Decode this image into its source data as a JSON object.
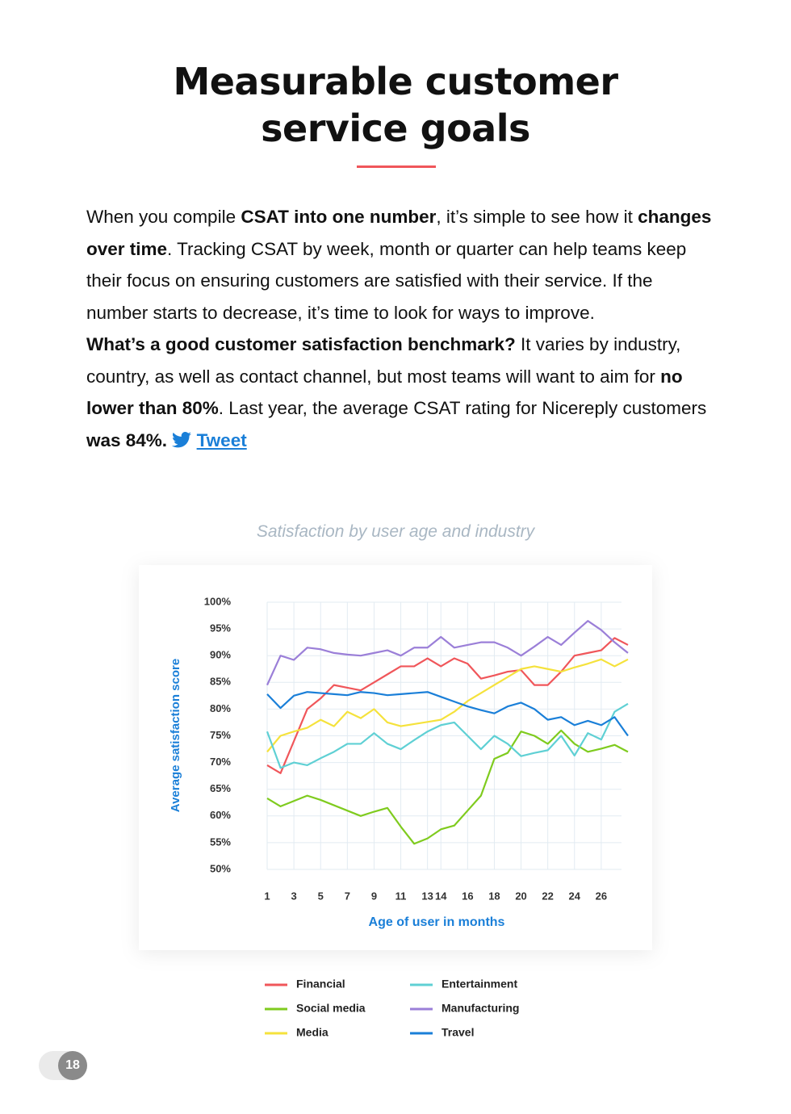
{
  "header": {
    "title_lines": [
      "Measurable customer",
      "service goals"
    ]
  },
  "body": {
    "paragraphs": [
      {
        "runs": [
          {
            "text": "When you compile ",
            "bold": false
          },
          {
            "text": "CSAT into one number",
            "bold": true
          },
          {
            "text": ", it’s simple to see how it ",
            "bold": false
          },
          {
            "text": "changes over time",
            "bold": true
          },
          {
            "text": ". Tracking CSAT by week, month or quarter can help teams keep their focus on ensuring customers are satisfied with their service. If the number starts to decrease, it’s time to look for ways to improve.",
            "bold": false
          }
        ]
      },
      {
        "runs": [
          {
            "text": "What’s a good customer satisfaction benchmark?",
            "bold": true
          },
          {
            "text": " It varies by industry, country, as well as contact channel, but most teams will want to aim for ",
            "bold": false
          },
          {
            "text": "no lower than 80%",
            "bold": true
          },
          {
            "text": ". Last year, the average CSAT rating for Nicereply customers ",
            "bold": false
          },
          {
            "text": "was 84%.",
            "bold": true
          }
        ]
      }
    ],
    "link": "Tweet"
  },
  "caption": "Satisfaction by user age and industry",
  "chart_data": {
    "type": "line",
    "x_label": "Age of user in months",
    "y_label": "Average satisfaction score",
    "x": [
      1,
      2,
      3,
      4,
      5,
      6,
      7,
      8,
      9,
      10,
      11,
      12,
      13,
      14,
      15,
      16,
      17,
      18,
      19,
      20,
      21,
      22,
      23,
      24,
      25,
      26,
      27,
      28
    ],
    "xlim": [
      1,
      28
    ],
    "xticks": [
      1,
      3,
      5,
      7,
      9,
      11,
      13,
      14,
      16,
      18,
      20,
      22,
      24,
      26
    ],
    "ylim": [
      50,
      100
    ],
    "yticks": [
      {
        "value": 50,
        "label": "50%"
      },
      {
        "value": 55,
        "label": "55%"
      },
      {
        "value": 60,
        "label": "60%"
      },
      {
        "value": 65,
        "label": "65%"
      },
      {
        "value": 70,
        "label": "70%"
      },
      {
        "value": 75,
        "label": "75%"
      },
      {
        "value": 80,
        "label": "80%"
      },
      {
        "value": 85,
        "label": "85%"
      },
      {
        "value": 90,
        "label": "90%"
      },
      {
        "value": 95,
        "label": "95%"
      },
      {
        "value": 100,
        "label": "100%"
      }
    ],
    "grid": true,
    "series": [
      {
        "name": "Financial",
        "color": "#f0565a",
        "values": [
          69.5,
          68,
          74,
          80,
          82,
          84.5,
          84,
          83.5,
          85,
          86.5,
          88,
          88,
          89.5,
          88,
          89.5,
          88.5,
          85.7,
          86.3,
          87,
          87.3,
          84.5,
          84.5,
          87,
          90,
          90.5,
          91,
          93.3,
          92
        ]
      },
      {
        "name": "Social media",
        "color": "#7fcb1e",
        "values": [
          63.3,
          61.8,
          62.8,
          63.8,
          63,
          62,
          61,
          60,
          60.8,
          61.5,
          58,
          54.8,
          55.8,
          57.5,
          58.2,
          61,
          63.8,
          70.7,
          71.8,
          75.8,
          75,
          73.5,
          76,
          73.5,
          72,
          72.6,
          73.3,
          72
        ]
      },
      {
        "name": "Media",
        "color": "#f5e23c",
        "values": [
          72,
          75,
          75.8,
          76.5,
          78,
          76.8,
          79.5,
          78.3,
          80,
          77.5,
          76.8,
          77.2,
          77.6,
          78,
          79.5,
          81.5,
          83,
          84.5,
          86,
          87.5,
          88,
          87.5,
          87,
          87.8,
          88.5,
          89.3,
          88,
          89.3
        ]
      },
      {
        "name": "Entertainment",
        "color": "#5fd0d4",
        "values": [
          75.8,
          69,
          70,
          69.5,
          70.8,
          72,
          73.5,
          73.5,
          75.5,
          73.5,
          72.5,
          74.2,
          75.8,
          77,
          77.5,
          75,
          72.5,
          75,
          73.5,
          71.2,
          71.8,
          72.3,
          75,
          71.3,
          75.5,
          74.3,
          79.5,
          81
        ]
      },
      {
        "name": "Manufacturing",
        "color": "#9b7fd8",
        "values": [
          84.5,
          90,
          89.2,
          91.5,
          91.2,
          90.5,
          90.2,
          90,
          90.5,
          91,
          90,
          91.5,
          91.5,
          93.5,
          91.5,
          92,
          92.5,
          92.5,
          91.5,
          90,
          91.7,
          93.5,
          92,
          94.3,
          96.5,
          94.8,
          92.5,
          90.5
        ]
      },
      {
        "name": "Travel",
        "color": "#1a7fd8",
        "values": [
          82.8,
          80.2,
          82.5,
          83.2,
          83,
          82.8,
          82.6,
          83.2,
          83,
          82.6,
          82.8,
          83,
          83.2,
          82.3,
          81.4,
          80.5,
          79.8,
          79.2,
          80.5,
          81.2,
          80,
          78,
          78.5,
          77,
          77.8,
          77,
          78.5,
          75
        ]
      }
    ]
  },
  "page_number": "18"
}
